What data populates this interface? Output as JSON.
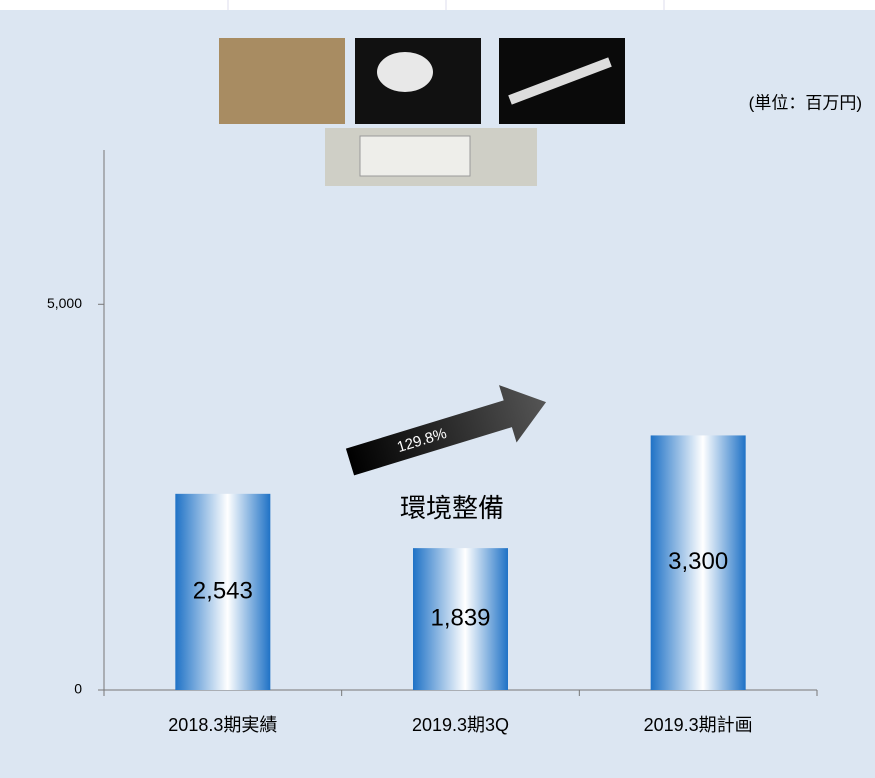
{
  "chart_data": {
    "type": "bar",
    "title": "環境整備",
    "unit_label": "(単位：百万円)",
    "growth_label": "129.8%",
    "categories": [
      "2018.3期実績",
      "2019.3期3Q",
      "2019.3期計画"
    ],
    "values": [
      2543,
      1839,
      3300
    ],
    "value_labels": [
      "2,543",
      "1,839",
      "3,300"
    ],
    "color": "#1f72c6",
    "ylim": [
      0,
      7000
    ],
    "yticks": [
      0,
      {
        "value": 5000,
        "label": "5,000"
      }
    ],
    "grid": false
  }
}
